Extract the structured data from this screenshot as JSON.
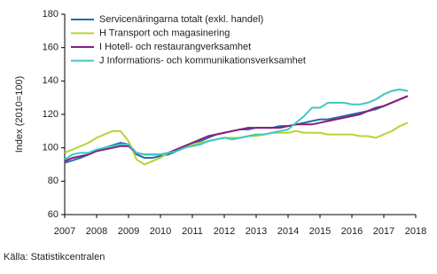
{
  "chart_data": {
    "type": "line",
    "y_label": "Index (2010=100)",
    "source": "Källa: Statistikcentralen",
    "x": [
      2007,
      2007.25,
      2007.5,
      2007.75,
      2008,
      2008.25,
      2008.5,
      2008.75,
      2009,
      2009.25,
      2009.5,
      2009.75,
      2010,
      2010.25,
      2010.5,
      2010.75,
      2011,
      2011.25,
      2011.5,
      2011.75,
      2012,
      2012.25,
      2012.5,
      2012.75,
      2013,
      2013.25,
      2013.5,
      2013.75,
      2014,
      2014.25,
      2014.5,
      2014.75,
      2015,
      2015.25,
      2015.5,
      2015.75,
      2016,
      2016.25,
      2016.5,
      2016.75,
      2017,
      2017.25,
      2017.5,
      2017.75
    ],
    "series": [
      {
        "name": "Servicenäringarna totalt (exkl. handel)",
        "color": "#1f6fa8",
        "values": [
          91,
          92.5,
          94,
          96,
          98.5,
          100,
          101.5,
          103,
          102,
          96,
          94,
          94,
          95,
          96,
          98,
          100,
          102,
          104,
          106,
          108,
          109,
          110,
          111,
          111,
          112,
          112,
          112,
          113,
          113,
          114,
          115,
          116,
          117,
          117,
          118,
          119,
          120,
          121,
          122,
          123,
          125,
          127,
          129,
          131
        ]
      },
      {
        "name": "H Transport och magasinering",
        "color": "#b7d433",
        "values": [
          97,
          99,
          101,
          103,
          106,
          108,
          110,
          110,
          104,
          93,
          90,
          92,
          94,
          97,
          99,
          101,
          102,
          103,
          104,
          105,
          106,
          106,
          106,
          107,
          107,
          108,
          109,
          109,
          109,
          110,
          109,
          109,
          109,
          108,
          108,
          108,
          108,
          107,
          107,
          106,
          108,
          110,
          113,
          115
        ]
      },
      {
        "name": "I Hotell- och restaurangverksamhet",
        "color": "#8b1a7e",
        "values": [
          92,
          94,
          95,
          96,
          98,
          99,
          100,
          101,
          101,
          97,
          96,
          96,
          96,
          97,
          99,
          101,
          103,
          105,
          107,
          108,
          109,
          110,
          111,
          112,
          112,
          112,
          112,
          112,
          113,
          114,
          114,
          114,
          115,
          116,
          117,
          118,
          119,
          120,
          122,
          124,
          125,
          127,
          129,
          131
        ]
      },
      {
        "name": "J Informations- och kommunikationsverksamhet",
        "color": "#3cc8c0",
        "values": [
          93,
          96,
          97,
          97,
          99,
          100,
          101,
          102,
          102,
          97,
          96,
          96,
          96,
          97,
          98,
          100,
          101,
          102,
          104,
          105,
          106,
          105,
          106,
          107,
          108,
          108,
          109,
          110,
          111,
          115,
          119,
          124,
          124,
          127,
          127,
          127,
          126,
          126,
          127,
          129,
          132,
          134,
          135,
          134
        ]
      }
    ],
    "xlim": [
      2007,
      2018
    ],
    "xticks": [
      2007,
      2008,
      2009,
      2010,
      2011,
      2012,
      2013,
      2014,
      2015,
      2016,
      2017,
      2018
    ],
    "ylim": [
      60,
      180
    ],
    "yticks": [
      60,
      80,
      100,
      120,
      140,
      160,
      180
    ],
    "grid": false,
    "legend": "upper left"
  }
}
